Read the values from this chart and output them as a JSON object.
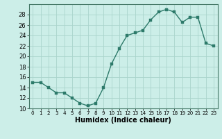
{
  "x": [
    0,
    1,
    2,
    3,
    4,
    5,
    6,
    7,
    8,
    9,
    10,
    11,
    12,
    13,
    14,
    15,
    16,
    17,
    18,
    19,
    20,
    21,
    22,
    23
  ],
  "y": [
    15,
    15,
    14,
    13,
    13,
    12,
    11,
    10.5,
    11,
    14,
    18.5,
    21.5,
    24,
    24.5,
    25,
    27,
    28.5,
    29,
    28.5,
    26.5,
    27.5,
    27.5,
    22.5,
    22
  ],
  "line_color": "#2d7a6a",
  "marker_color": "#2d7a6a",
  "background_color": "#cceee8",
  "grid_color": "#aad4cc",
  "xlabel": "Humidex (Indice chaleur)",
  "ylim": [
    10,
    30
  ],
  "xlim": [
    -0.5,
    23.5
  ],
  "yticks": [
    10,
    12,
    14,
    16,
    18,
    20,
    22,
    24,
    26,
    28
  ],
  "xticks": [
    0,
    1,
    2,
    3,
    4,
    5,
    6,
    7,
    8,
    9,
    10,
    11,
    12,
    13,
    14,
    15,
    16,
    17,
    18,
    19,
    20,
    21,
    22,
    23
  ],
  "xlabel_fontsize": 7,
  "tick_fontsize": 6,
  "line_width": 1.0,
  "marker_size": 2.5
}
